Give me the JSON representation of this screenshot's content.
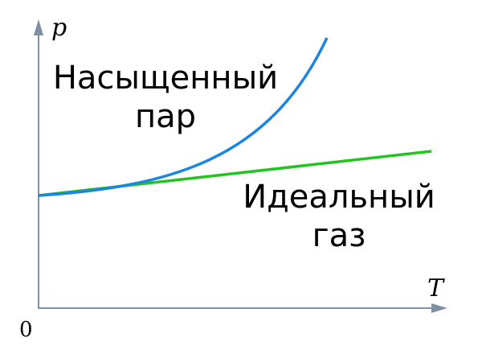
{
  "axes": {
    "y_label": "p",
    "x_label": "T",
    "origin": "0"
  },
  "curves": [
    {
      "label_lines": [
        "Насыщенный",
        "пар"
      ]
    },
    {
      "label_lines": [
        "Идеальный",
        "газ"
      ]
    }
  ]
}
